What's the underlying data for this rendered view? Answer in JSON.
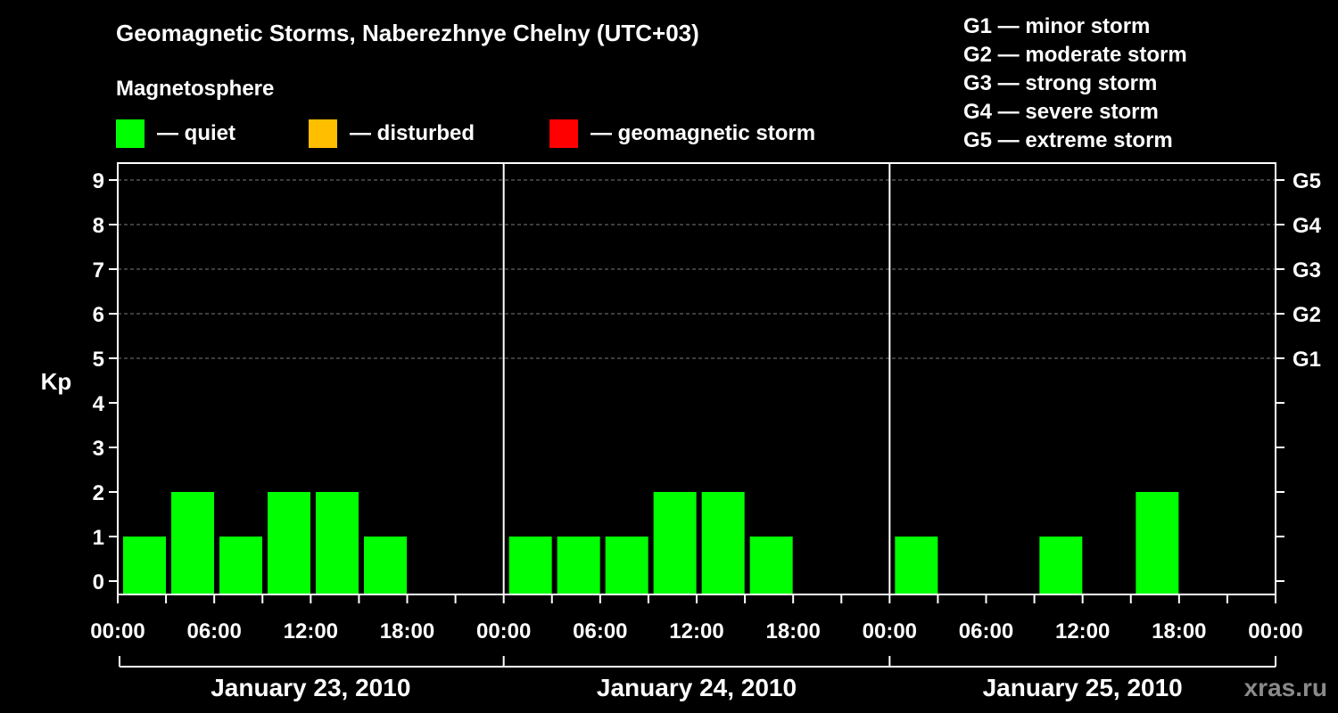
{
  "title": "Geomagnetic Storms, Naberezhnye Chelny (UTC+03)",
  "magnetosphere_title": "Magnetosphere",
  "legend": [
    {
      "label": "— quiet",
      "color": "#00ff00"
    },
    {
      "label": "— disturbed",
      "color": "#ffbf00"
    },
    {
      "label": "— geomagnetic storm",
      "color": "#ff0000"
    }
  ],
  "storm_scale": [
    "G1 — minor storm",
    "G2 — moderate storm",
    "G3 — strong storm",
    "G4 — severe storm",
    "G5 — extreme storm"
  ],
  "watermark": "xras.ru",
  "chart_data": {
    "type": "bar",
    "ylabel": "Kp",
    "ylim": [
      0,
      9
    ],
    "yticks": [
      "0",
      "1",
      "2",
      "3",
      "4",
      "5",
      "6",
      "7",
      "8",
      "9"
    ],
    "right_ticks": [
      {
        "kp": 5,
        "label": "G1"
      },
      {
        "kp": 6,
        "label": "G2"
      },
      {
        "kp": 7,
        "label": "G3"
      },
      {
        "kp": 8,
        "label": "G4"
      },
      {
        "kp": 9,
        "label": "G5"
      }
    ],
    "grid": "horizontal dashed lines at Kp 5–9",
    "xtick_labels": [
      "00:00",
      "06:00",
      "12:00",
      "18:00",
      "00:00",
      "06:00",
      "12:00",
      "18:00",
      "00:00",
      "06:00",
      "12:00",
      "18:00",
      "00:00"
    ],
    "days": [
      {
        "label": "January 23, 2010",
        "values": [
          1,
          2,
          1,
          2,
          2,
          1,
          0,
          0
        ]
      },
      {
        "label": "January 24, 2010",
        "values": [
          1,
          1,
          1,
          2,
          2,
          1,
          0,
          0
        ]
      },
      {
        "label": "January 25, 2010",
        "values": [
          1,
          0,
          0,
          1,
          0,
          2,
          0,
          0
        ]
      }
    ],
    "interval_hours": 3,
    "bar_color": "#00ff00"
  }
}
